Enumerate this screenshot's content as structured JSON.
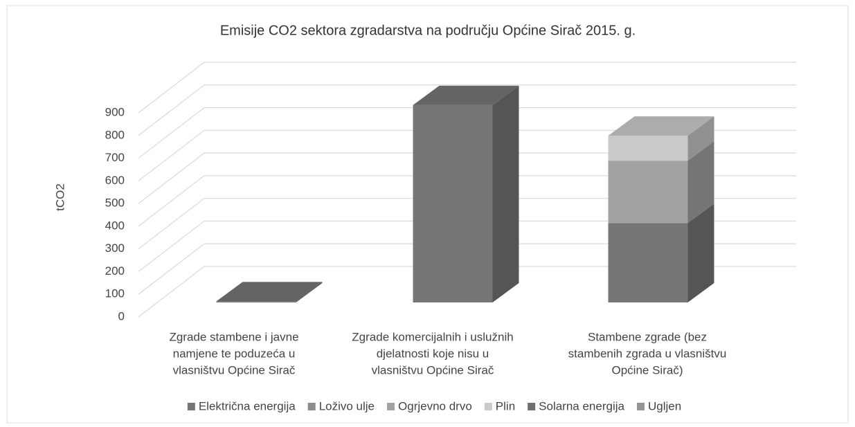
{
  "chart_data": {
    "type": "bar3d_stacked",
    "title": "Emisije CO2 sektora zgradarstva na području Općine Sirač 2015. g.",
    "ylabel": "tCO2",
    "categories": [
      [
        "Zgrade stambene i javne",
        "namjene te poduzeća u",
        "vlasništvu Općine Sirač"
      ],
      [
        "Zgrade komercijalnih i uslužnih",
        "djelatnosti koje nisu u",
        "vlasništvu Općine Sirač"
      ],
      [
        "Stambene zgrade (bez",
        "stambenih zgrada u vlasništvu",
        "Općine Sirač)"
      ]
    ],
    "series": [
      {
        "name": "Električna energija",
        "color": "#767676",
        "values": [
          5,
          870,
          350
        ]
      },
      {
        "name": "Loživo ulje",
        "color": "#8c8c8c",
        "values": [
          0,
          0,
          0
        ]
      },
      {
        "name": "Ogrjevno drvo",
        "color": "#a2a2a2",
        "values": [
          0,
          0,
          275
        ]
      },
      {
        "name": "Plin",
        "color": "#cacaca",
        "values": [
          0,
          0,
          110
        ]
      },
      {
        "name": "Solarna energija",
        "color": "#6f6f6f",
        "values": [
          0,
          0,
          0
        ]
      },
      {
        "name": "Ugljen",
        "color": "#959595",
        "values": [
          0,
          0,
          0
        ]
      }
    ],
    "ylim": [
      0,
      900
    ],
    "yticks": [
      0,
      100,
      200,
      300,
      400,
      500,
      600,
      700,
      800,
      900
    ],
    "grid": true,
    "legend": "bottom"
  }
}
